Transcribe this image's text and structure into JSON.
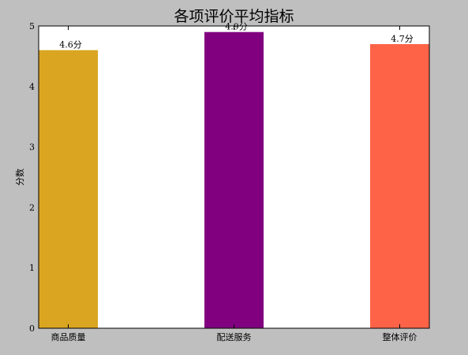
{
  "chart_data": {
    "type": "bar",
    "title": "各项评价平均指标",
    "xlabel": "",
    "ylabel": "分数",
    "categories": [
      "商品质量",
      "配送服务",
      "整体评价"
    ],
    "values": [
      4.6,
      4.9,
      4.7
    ],
    "data_labels": [
      "4.6分",
      "4.9分",
      "4.7分"
    ],
    "colors": [
      "#DAA520",
      "#800080",
      "#FF6347"
    ],
    "ylim": [
      0,
      5
    ],
    "yticks": [
      "0",
      "1",
      "2",
      "3",
      "4",
      "5"
    ],
    "grid": false,
    "legend": "none"
  },
  "figure_background": "#bfbfbf",
  "axes_background": "#ffffff"
}
